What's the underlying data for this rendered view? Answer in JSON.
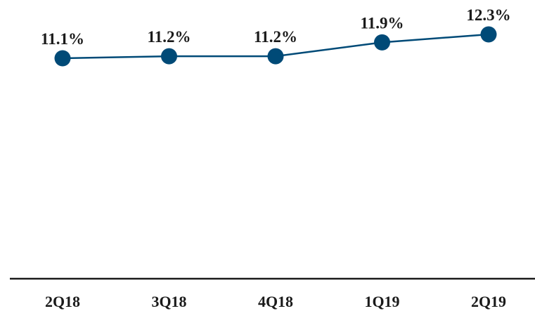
{
  "chart_data": {
    "type": "line",
    "categories": [
      "2Q18",
      "3Q18",
      "4Q18",
      "1Q19",
      "2Q19"
    ],
    "series": [
      {
        "values": [
          11.1,
          11.2,
          11.2,
          11.9,
          12.3
        ],
        "labels": [
          "11.1%",
          "11.2%",
          "11.2%",
          "11.9%",
          "12.3%"
        ]
      }
    ],
    "title": "",
    "xlabel": "",
    "ylabel": "",
    "grid": false,
    "legend": "none",
    "colors": {
      "line": "#004a77",
      "marker": "#004a77",
      "axis": "#1a1a1a"
    }
  }
}
